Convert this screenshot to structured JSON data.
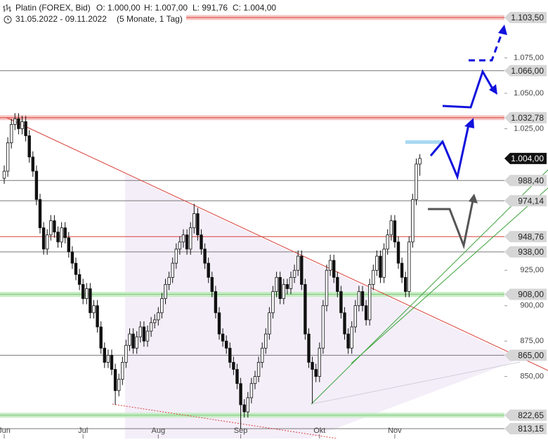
{
  "chart_data": {
    "type": "candlestick",
    "title": "Platin (FOREX, Bid)",
    "summary": [
      {
        "value": 1000.0,
        "label": "O: 1.000,00"
      },
      {
        "value": 1007.0,
        "label": "H: 1.007,00"
      },
      {
        "value": 991.76,
        "label": "L: 991,76"
      },
      {
        "value": 1004.0,
        "label": "C: 1.004,00"
      }
    ],
    "period": "31.05.2022 - 09.11.2022",
    "duration": "(5 Monate, 1 Tag)",
    "months": [
      "Jun",
      "Jul",
      "Aug",
      "Sep",
      "Okt",
      "Nov"
    ],
    "ylim": [
      806.2,
      1115.9
    ],
    "yticks": [
      {
        "value": 850,
        "label": "850,00"
      },
      {
        "value": 875,
        "label": "875,00"
      },
      {
        "value": 900,
        "label": "900,00"
      },
      {
        "value": 925,
        "label": "925,00"
      },
      {
        "value": 1025,
        "label": "1.025,00"
      },
      {
        "value": 1050,
        "label": "1.050,00"
      },
      {
        "value": 1075,
        "label": "1.075,00"
      }
    ],
    "levels": [
      {
        "value": 1103.5,
        "label": "1.103,50",
        "style": "red-band"
      },
      {
        "value": 1066.0,
        "label": "1.066,00",
        "style": "gray"
      },
      {
        "value": 1032.78,
        "label": "1.032,78",
        "style": "red-band"
      },
      {
        "value": 1004.0,
        "label": "1.004,00",
        "style": "current"
      },
      {
        "value": 988.4,
        "label": "988,40",
        "style": "gray"
      },
      {
        "value": 974.14,
        "label": "974,14",
        "style": "gray"
      },
      {
        "value": 948.76,
        "label": "948,76",
        "style": "red"
      },
      {
        "value": 938.0,
        "label": "938,00",
        "style": "gray"
      },
      {
        "value": 908.0,
        "label": "908,00",
        "style": "green-band"
      },
      {
        "value": 865.0,
        "label": "865,00",
        "style": "gray"
      },
      {
        "value": 822.65,
        "label": "822,65",
        "style": "green-band"
      },
      {
        "value": 813.15,
        "label": "813,15",
        "style": "gray"
      }
    ],
    "ohlc": [
      [
        990,
        999,
        986,
        995
      ],
      [
        995,
        1019,
        991,
        1015
      ],
      [
        1015,
        1032,
        1011,
        1028
      ],
      [
        1028,
        1036,
        1024,
        1032
      ],
      [
        1032,
        1036,
        1021,
        1025
      ],
      [
        1025,
        1034,
        1021,
        1030
      ],
      [
        1030,
        1034,
        1016,
        1020
      ],
      [
        1020,
        1024,
        1001,
        1005
      ],
      [
        1005,
        1009,
        991,
        995
      ],
      [
        995,
        999,
        971,
        975
      ],
      [
        975,
        979,
        951,
        955
      ],
      [
        955,
        959,
        936,
        940
      ],
      [
        940,
        954,
        936,
        950
      ],
      [
        950,
        964,
        946,
        960
      ],
      [
        960,
        964,
        948,
        952
      ],
      [
        952,
        956,
        941,
        945
      ],
      [
        945,
        959,
        941,
        955
      ],
      [
        955,
        959,
        944,
        948
      ],
      [
        948,
        952,
        934,
        938
      ],
      [
        938,
        942,
        926,
        930
      ],
      [
        930,
        934,
        918,
        922
      ],
      [
        922,
        926,
        911,
        915
      ],
      [
        915,
        919,
        901,
        905
      ],
      [
        905,
        916,
        901,
        912
      ],
      [
        912,
        916,
        891,
        895
      ],
      [
        895,
        904,
        891,
        900
      ],
      [
        900,
        904,
        881,
        885
      ],
      [
        885,
        889,
        866,
        870
      ],
      [
        870,
        874,
        856,
        860
      ],
      [
        860,
        869,
        856,
        865
      ],
      [
        865,
        869,
        851,
        855
      ],
      [
        855,
        859,
        830,
        840
      ],
      [
        840,
        852,
        836,
        848
      ],
      [
        848,
        864,
        844,
        860
      ],
      [
        860,
        876,
        856,
        872
      ],
      [
        872,
        884,
        868,
        880
      ],
      [
        880,
        884,
        866,
        870
      ],
      [
        870,
        882,
        866,
        878
      ],
      [
        878,
        889,
        874,
        885
      ],
      [
        885,
        889,
        871,
        875
      ],
      [
        875,
        886,
        871,
        882
      ],
      [
        882,
        892,
        878,
        888
      ],
      [
        888,
        894,
        884,
        890
      ],
      [
        890,
        899,
        886,
        895
      ],
      [
        895,
        909,
        891,
        905
      ],
      [
        905,
        919,
        901,
        915
      ],
      [
        915,
        924,
        911,
        920
      ],
      [
        920,
        934,
        916,
        930
      ],
      [
        930,
        944,
        926,
        940
      ],
      [
        940,
        949,
        936,
        945
      ],
      [
        945,
        954,
        941,
        950
      ],
      [
        950,
        954,
        936,
        940
      ],
      [
        940,
        959,
        936,
        955
      ],
      [
        955,
        972,
        951,
        965
      ],
      [
        965,
        969,
        946,
        950
      ],
      [
        950,
        954,
        936,
        940
      ],
      [
        940,
        944,
        926,
        930
      ],
      [
        930,
        934,
        916,
        920
      ],
      [
        920,
        924,
        906,
        910
      ],
      [
        910,
        914,
        891,
        895
      ],
      [
        895,
        899,
        876,
        880
      ],
      [
        880,
        884,
        871,
        875
      ],
      [
        875,
        879,
        866,
        870
      ],
      [
        870,
        874,
        856,
        860
      ],
      [
        860,
        864,
        851,
        855
      ],
      [
        855,
        859,
        841,
        845
      ],
      [
        845,
        849,
        813.15,
        830
      ],
      [
        830,
        834,
        821,
        825
      ],
      [
        825,
        839,
        821,
        835
      ],
      [
        835,
        849,
        831,
        845
      ],
      [
        845,
        854,
        841,
        850
      ],
      [
        850,
        864,
        846,
        860
      ],
      [
        860,
        874,
        856,
        870
      ],
      [
        870,
        884,
        866,
        880
      ],
      [
        880,
        899,
        876,
        895
      ],
      [
        895,
        914,
        891,
        910
      ],
      [
        910,
        924,
        906,
        920
      ],
      [
        920,
        924,
        901,
        905
      ],
      [
        905,
        919,
        901,
        915
      ],
      [
        915,
        919,
        908,
        912
      ],
      [
        912,
        924,
        908,
        920
      ],
      [
        920,
        929,
        916,
        925
      ],
      [
        925,
        939,
        921,
        935
      ],
      [
        935,
        939,
        911,
        915
      ],
      [
        915,
        919,
        876,
        880
      ],
      [
        880,
        884,
        856,
        860
      ],
      [
        860,
        864,
        831,
        855
      ],
      [
        855,
        859,
        846,
        850
      ],
      [
        850,
        874,
        846,
        870
      ],
      [
        870,
        904,
        866,
        900
      ],
      [
        900,
        929,
        896,
        925
      ],
      [
        925,
        936,
        921,
        932
      ],
      [
        932,
        936,
        916,
        920
      ],
      [
        920,
        924,
        906,
        910
      ],
      [
        910,
        914,
        891,
        895
      ],
      [
        895,
        899,
        876,
        880
      ],
      [
        880,
        884,
        866,
        870
      ],
      [
        870,
        889,
        866,
        885
      ],
      [
        885,
        904,
        881,
        900
      ],
      [
        900,
        914,
        896,
        910
      ],
      [
        910,
        914,
        896,
        900
      ],
      [
        900,
        904,
        886,
        890
      ],
      [
        890,
        919,
        886,
        915
      ],
      [
        915,
        929,
        911,
        925
      ],
      [
        925,
        939,
        921,
        935
      ],
      [
        935,
        939,
        916,
        920
      ],
      [
        920,
        944,
        916,
        940
      ],
      [
        940,
        954,
        936,
        950
      ],
      [
        950,
        964,
        946,
        960
      ],
      [
        960,
        964,
        941,
        945
      ],
      [
        945,
        949,
        926,
        930
      ],
      [
        930,
        934,
        916,
        920
      ],
      [
        920,
        924,
        906,
        910
      ],
      [
        910,
        949,
        906,
        945
      ],
      [
        945,
        979,
        941,
        975
      ],
      [
        975,
        1004,
        971,
        1000
      ],
      [
        1000,
        1007,
        991.76,
        1004
      ]
    ]
  }
}
